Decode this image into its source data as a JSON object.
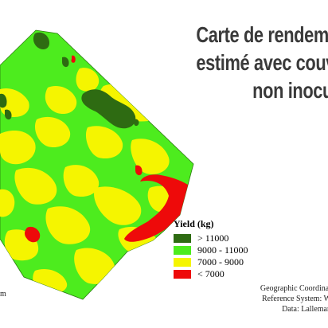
{
  "title": {
    "line1": "Carte de rendeme",
    "line2": "estimé avec couv",
    "line3": "non inocu"
  },
  "legend": {
    "title": "Yield (kg)",
    "items": [
      {
        "label": "> 11000",
        "color": "#2e6b12"
      },
      {
        "label": "9000 - 11000",
        "color": "#4dec1e"
      },
      {
        "label": "7000 - 9000",
        "color": "#f5f500"
      },
      {
        "label": "< 7000",
        "color": "#ee0a0a"
      }
    ]
  },
  "credits": {
    "line1": "Geographic Coordinat",
    "line2": "Reference System: W",
    "line3": "Data: Lalleman"
  },
  "left_fragment": "m"
}
